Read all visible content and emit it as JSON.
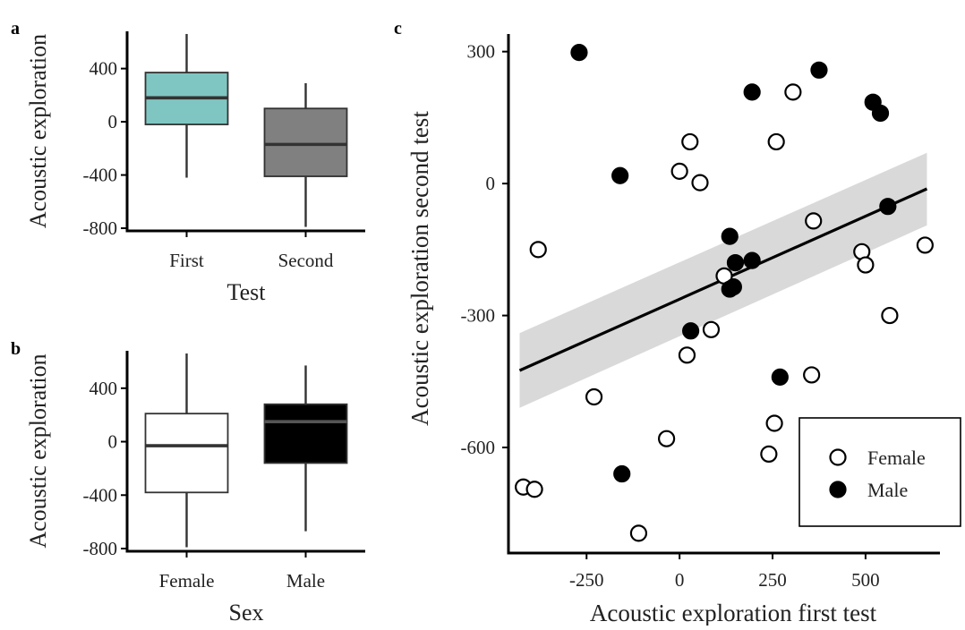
{
  "chart_data": [
    {
      "panel": "a",
      "type": "boxplot",
      "xlabel": "Test",
      "ylabel": "Acoustic exploration",
      "ylim": [
        -820,
        680
      ],
      "yticks": [
        400,
        0,
        -400,
        -800
      ],
      "ytick_labels": [
        "400",
        "0",
        "-400",
        "-800"
      ],
      "categories": [
        "First",
        "Second"
      ],
      "boxes": [
        {
          "category": "First",
          "min": -420,
          "q1": -20,
          "median": 180,
          "q3": 370,
          "max": 660,
          "color": "#7fc6c3"
        },
        {
          "category": "Second",
          "min": -790,
          "q1": -410,
          "median": -170,
          "q3": 100,
          "max": 290,
          "color": "#808080"
        }
      ]
    },
    {
      "panel": "b",
      "type": "boxplot",
      "xlabel": "Sex",
      "ylabel": "Acoustic exploration",
      "ylim": [
        -820,
        680
      ],
      "yticks": [
        400,
        0,
        -400,
        -800
      ],
      "ytick_labels": [
        "400",
        "0",
        "-400",
        "-800"
      ],
      "categories": [
        "Female",
        "Male"
      ],
      "boxes": [
        {
          "category": "Female",
          "min": -790,
          "q1": -380,
          "median": -30,
          "q3": 210,
          "max": 660,
          "color": "#ffffff"
        },
        {
          "category": "Male",
          "min": -670,
          "q1": -160,
          "median": 150,
          "q3": 280,
          "max": 570,
          "color": "#000000"
        }
      ]
    },
    {
      "panel": "c",
      "type": "scatter",
      "xlabel": "Acoustic exploration first test",
      "ylabel": "Acoustic exploration second test",
      "xlim": [
        -460,
        700
      ],
      "ylim": [
        -840,
        340
      ],
      "xticks": [
        -250,
        0,
        250,
        500
      ],
      "xtick_labels": [
        "-250",
        "0",
        "250",
        "500"
      ],
      "yticks": [
        300,
        0,
        -300,
        -600
      ],
      "ytick_labels": [
        "300",
        "0",
        "-300",
        "-600"
      ],
      "legend_position": "bottom-right",
      "series": [
        {
          "name": "Female",
          "marker": "open-circle",
          "points": [
            [
              -380,
              -150
            ],
            [
              -420,
              -690
            ],
            [
              -390,
              -695
            ],
            [
              -230,
              -485
            ],
            [
              -35,
              -580
            ],
            [
              -110,
              -795
            ],
            [
              0,
              28
            ],
            [
              28,
              95
            ],
            [
              55,
              2
            ],
            [
              20,
              -390
            ],
            [
              85,
              -332
            ],
            [
              120,
              -210
            ],
            [
              260,
              95
            ],
            [
              305,
              208
            ],
            [
              360,
              -85
            ],
            [
              355,
              -435
            ],
            [
              255,
              -545
            ],
            [
              240,
              -615
            ],
            [
              490,
              -155
            ],
            [
              500,
              -185
            ],
            [
              565,
              -300
            ],
            [
              660,
              -140
            ]
          ]
        },
        {
          "name": "Male",
          "marker": "filled-circle",
          "points": [
            [
              -270,
              298
            ],
            [
              -160,
              18
            ],
            [
              -155,
              -660
            ],
            [
              195,
              208
            ],
            [
              375,
              258
            ],
            [
              520,
              185
            ],
            [
              540,
              160
            ],
            [
              560,
              -52
            ],
            [
              135,
              -120
            ],
            [
              150,
              -180
            ],
            [
              195,
              -175
            ],
            [
              135,
              -240
            ],
            [
              145,
              -235
            ],
            [
              30,
              -335
            ],
            [
              270,
              -440
            ]
          ]
        }
      ],
      "trend_line": {
        "x": [
          -430,
          665
        ],
        "y": [
          -425,
          -12
        ],
        "ci_lower": [
          -510,
          -95
        ],
        "ci_upper": [
          -340,
          70
        ]
      }
    }
  ]
}
